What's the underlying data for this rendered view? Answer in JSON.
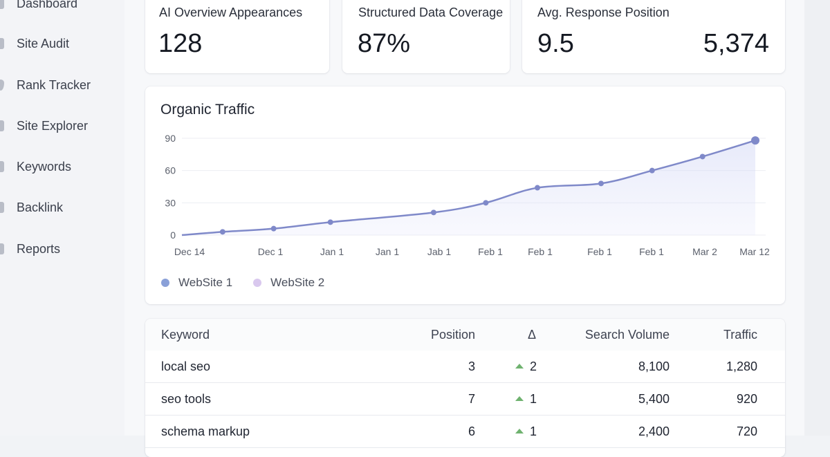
{
  "sidebar": {
    "items": [
      {
        "label": "Dashboard",
        "icon": "dashboard-icon"
      },
      {
        "label": "Site Audit",
        "icon": "audit-icon"
      },
      {
        "label": "Rank Tracker",
        "icon": "rank-icon"
      },
      {
        "label": "Site Explorer",
        "icon": "explorer-icon"
      },
      {
        "label": "Keywords",
        "icon": "keywords-icon"
      },
      {
        "label": "Backlink",
        "icon": "backlink-icon"
      },
      {
        "label": "Reports",
        "icon": "reports-icon"
      }
    ]
  },
  "stats": [
    {
      "label": "AI Overview Appearances",
      "value": "128"
    },
    {
      "label": "Structured Data Coverage",
      "value": "87%"
    },
    {
      "label": "Avg. Response Position",
      "value": "9.5",
      "extra_value": "5,374"
    }
  ],
  "chart_data": {
    "type": "area",
    "title": "Organic Traffic",
    "categories": [
      "Dec 14",
      "Dec 1",
      "Jan 1",
      "Jan 1",
      "Jab 1",
      "Feb 1",
      "Feb 1",
      "Feb 1",
      "Feb 1",
      "Mar 2",
      "Mar 12"
    ],
    "ylim": [
      0,
      90
    ],
    "yticks": [
      0,
      30,
      60,
      90
    ],
    "grid": true,
    "legend": "bottom-left",
    "series": [
      {
        "name": "WebSite 1",
        "color": "#7f89c9",
        "x_frac": [
          0.0,
          0.071,
          0.16,
          0.259,
          0.439,
          0.53,
          0.62,
          0.731,
          0.82,
          0.908,
          1.0
        ],
        "values": [
          0,
          3,
          6,
          12,
          21,
          30,
          44,
          48,
          60,
          73,
          88
        ]
      }
    ],
    "legend_entries": [
      {
        "name": "WebSite 1",
        "color": "#8aa0d8"
      },
      {
        "name": "WebSite 2",
        "color": "#d9c8ee"
      }
    ]
  },
  "table": {
    "headers": {
      "keyword": "Keyword",
      "position": "Position",
      "delta": "Δ",
      "volume": "Search Volume",
      "traffic": "Traffic"
    },
    "rows": [
      {
        "keyword": "local seo",
        "position": "3",
        "delta": "2",
        "volume": "8,100",
        "traffic": "1,280"
      },
      {
        "keyword": "seo tools",
        "position": "7",
        "delta": "1",
        "volume": "5,400",
        "traffic": "920"
      },
      {
        "keyword": "schema markup",
        "position": "6",
        "delta": "1",
        "volume": "2,400",
        "traffic": "720"
      }
    ]
  },
  "colors": {
    "accent": "#7f89c9",
    "up": "#6fb26f"
  }
}
